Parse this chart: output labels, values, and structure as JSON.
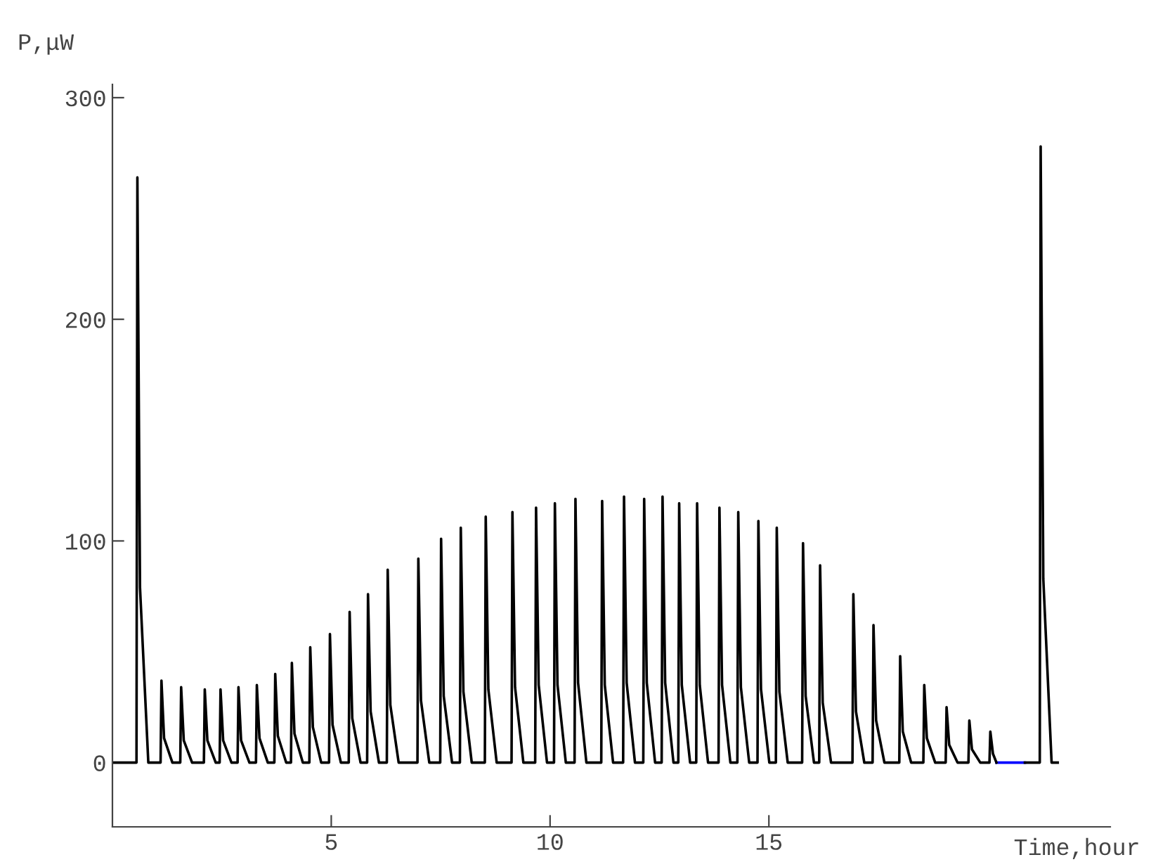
{
  "chart_data": {
    "type": "line",
    "xlabel": "Time,hour",
    "ylabel": "P,μW",
    "xlim": [
      0,
      22.8
    ],
    "ylim": [
      -29,
      306
    ],
    "xticks": [
      5,
      10,
      15
    ],
    "yticks": [
      0,
      100,
      200,
      300
    ],
    "grid": false,
    "marker": "none",
    "line_style": "solid",
    "series": [
      {
        "color": "#0000ff",
        "x": [
          20.2,
          20.85
        ],
        "values": [
          0,
          0
        ]
      },
      {
        "color": "#000000",
        "x": [
          0,
          0.55,
          0.57,
          0.63,
          0.82,
          1.1,
          1.12,
          1.18,
          1.37,
          1.55,
          1.57,
          1.63,
          1.82,
          2.09,
          2.11,
          2.17,
          2.36,
          2.45,
          2.47,
          2.53,
          2.72,
          2.86,
          2.88,
          2.94,
          3.13,
          3.28,
          3.3,
          3.36,
          3.55,
          3.7,
          3.72,
          3.78,
          3.97,
          4.08,
          4.1,
          4.16,
          4.35,
          4.5,
          4.52,
          4.58,
          4.77,
          4.95,
          4.97,
          5.03,
          5.22,
          5.4,
          5.42,
          5.48,
          5.67,
          5.82,
          5.84,
          5.9,
          6.09,
          6.27,
          6.29,
          6.35,
          6.54,
          6.97,
          6.99,
          7.05,
          7.24,
          7.49,
          7.51,
          7.57,
          7.76,
          7.94,
          7.96,
          8.02,
          8.21,
          8.51,
          8.53,
          8.59,
          8.78,
          9.12,
          9.14,
          9.2,
          9.39,
          9.66,
          9.68,
          9.74,
          9.93,
          10.09,
          10.11,
          10.17,
          10.36,
          10.56,
          10.58,
          10.64,
          10.83,
          11.17,
          11.19,
          11.25,
          11.44,
          11.67,
          11.69,
          11.75,
          11.94,
          12.13,
          12.15,
          12.21,
          12.4,
          12.55,
          12.57,
          12.63,
          12.82,
          12.93,
          12.95,
          13.01,
          13.2,
          13.34,
          13.36,
          13.42,
          13.61,
          13.85,
          13.87,
          13.93,
          14.12,
          14.28,
          14.3,
          14.36,
          14.55,
          14.74,
          14.76,
          14.82,
          15.01,
          15.16,
          15.18,
          15.24,
          15.43,
          15.76,
          15.78,
          15.84,
          16.03,
          16.15,
          16.17,
          16.23,
          16.42,
          16.91,
          16.93,
          16.99,
          17.18,
          17.37,
          17.39,
          17.45,
          17.64,
          17.98,
          18.0,
          18.06,
          18.25,
          18.53,
          18.55,
          18.61,
          18.8,
          19.04,
          19.06,
          19.12,
          19.31,
          19.56,
          19.58,
          19.64,
          19.83,
          20.04,
          20.06,
          20.12,
          20.2,
          20.5,
          20.85,
          21.19,
          21.21,
          21.27,
          21.46,
          21.6
        ],
        "values": [
          0,
          0,
          264,
          79,
          0,
          0,
          37,
          11,
          0,
          0,
          34,
          10,
          0,
          0,
          33,
          10,
          0,
          0,
          33,
          10,
          0,
          0,
          34,
          10,
          0,
          0,
          35,
          11,
          0,
          0,
          40,
          12,
          0,
          0,
          45,
          13,
          0,
          0,
          52,
          16,
          0,
          0,
          58,
          17,
          0,
          0,
          68,
          20,
          0,
          0,
          76,
          23,
          0,
          0,
          87,
          26,
          0,
          0,
          92,
          28,
          0,
          0,
          101,
          30,
          0,
          0,
          106,
          32,
          0,
          0,
          111,
          33,
          0,
          0,
          113,
          34,
          0,
          0,
          115,
          35,
          0,
          0,
          117,
          35,
          0,
          0,
          119,
          36,
          0,
          0,
          118,
          35,
          0,
          0,
          120,
          36,
          0,
          0,
          119,
          36,
          0,
          0,
          120,
          36,
          0,
          0,
          117,
          35,
          0,
          0,
          117,
          35,
          0,
          0,
          115,
          35,
          0,
          0,
          113,
          34,
          0,
          0,
          109,
          33,
          0,
          0,
          106,
          32,
          0,
          0,
          99,
          30,
          0,
          0,
          89,
          27,
          0,
          0,
          76,
          23,
          0,
          0,
          62,
          19,
          0,
          0,
          48,
          14,
          0,
          0,
          35,
          11,
          0,
          0,
          25,
          8,
          0,
          0,
          19,
          6,
          0,
          0,
          14,
          4,
          0,
          null,
          0,
          0,
          278,
          83,
          0,
          0
        ]
      }
    ]
  }
}
